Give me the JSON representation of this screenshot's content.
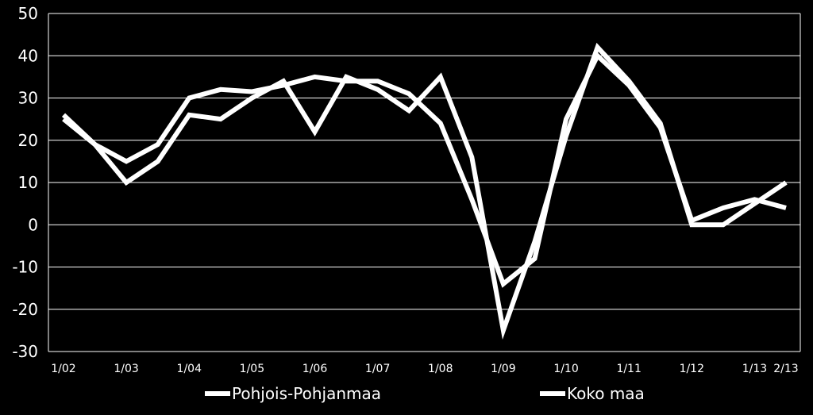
{
  "chart_data": {
    "type": "line",
    "x_labels": [
      "1/02",
      "",
      "1/03",
      "",
      "1/04",
      "",
      "1/05",
      "",
      "1/06",
      "",
      "1/07",
      "",
      "1/08",
      "",
      "1/09",
      "",
      "1/10",
      "",
      "1/11",
      "",
      "1/12",
      "",
      "1/13",
      "2/13"
    ],
    "ylim": [
      -30,
      50
    ],
    "yticks": [
      "50",
      "40",
      "30",
      "20",
      "10",
      "0",
      "-10",
      "-20",
      "-30"
    ],
    "grid": true,
    "legend_position": "bottom",
    "series": [
      {
        "name": "Pohjois-Pohjanmaa",
        "color": "#ffffff",
        "values": [
          26,
          19,
          10,
          15,
          26,
          25,
          30,
          34,
          22,
          35,
          32,
          27,
          35,
          16,
          -25,
          -4,
          21,
          42,
          34,
          24,
          0,
          0,
          5,
          10
        ]
      },
      {
        "name": "Koko maa",
        "color": "#ffffff",
        "values": [
          25,
          19,
          15,
          19,
          30,
          32,
          31.5,
          33,
          35,
          34,
          34,
          31,
          24,
          6,
          -14,
          -8,
          25,
          40,
          33,
          23,
          1,
          4,
          6,
          4
        ]
      }
    ]
  }
}
